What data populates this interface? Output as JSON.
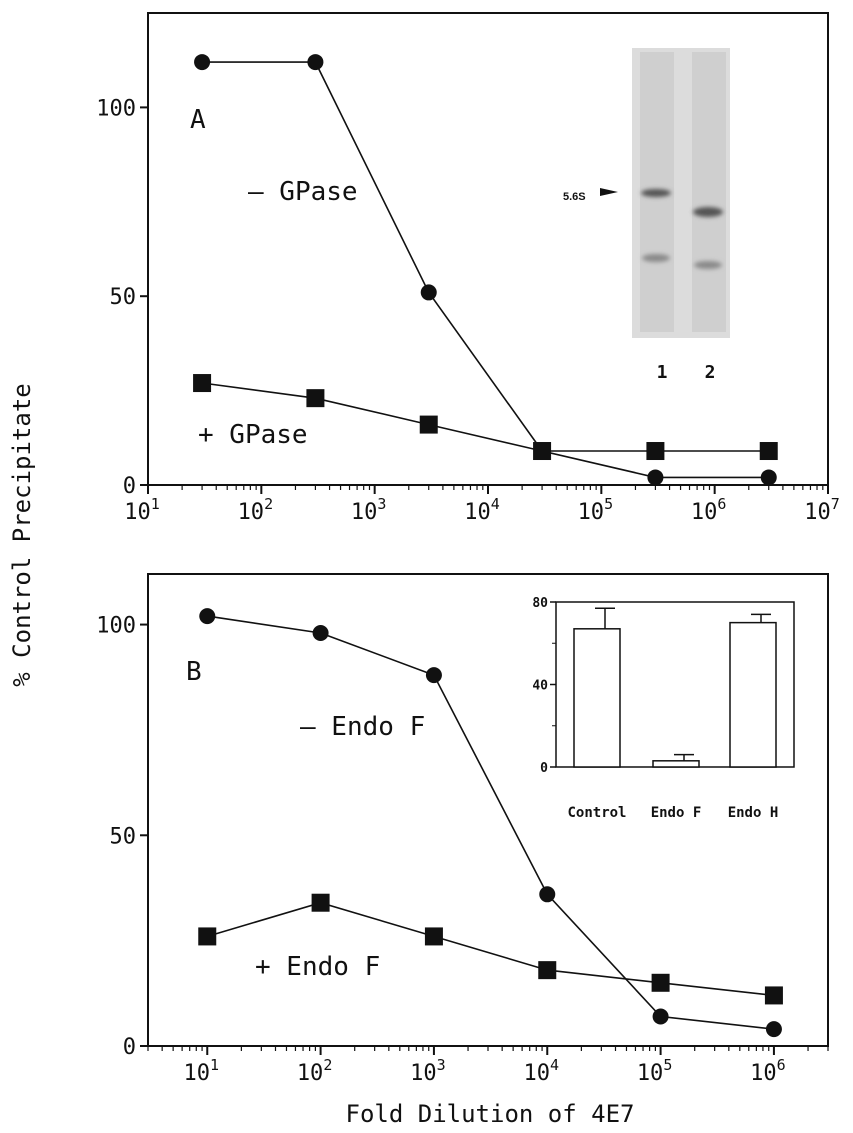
{
  "ylabel": "% Control Precipitate",
  "xlabel": "Fold Dilution of 4E7",
  "colors": {
    "ink": "#111111",
    "gel_bg": "#d9d9d9",
    "band": "#555555"
  },
  "chart_data": [
    {
      "panel": "A",
      "type": "line",
      "x_scale": "log",
      "xlim": [
        10,
        10000000
      ],
      "ylim": [
        0,
        125
      ],
      "xticks": [
        {
          "value": 10,
          "base": "10",
          "exp": "1"
        },
        {
          "value": 100,
          "base": "10",
          "exp": "2"
        },
        {
          "value": 1000,
          "base": "10",
          "exp": "3"
        },
        {
          "value": 10000,
          "base": "10",
          "exp": "4"
        },
        {
          "value": 100000,
          "base": "10",
          "exp": "5"
        },
        {
          "value": 1000000,
          "base": "10",
          "exp": "6"
        },
        {
          "value": 10000000,
          "base": "10",
          "exp": "7"
        }
      ],
      "yticks": [
        0,
        50,
        100
      ],
      "series": [
        {
          "name": "– GPase",
          "marker": "circle",
          "x": [
            30,
            300,
            3000,
            30000,
            300000,
            3000000
          ],
          "y": [
            112,
            112,
            51,
            9,
            2,
            2
          ]
        },
        {
          "name": "+ GPase",
          "marker": "square",
          "x": [
            30,
            300,
            3000,
            30000,
            300000,
            3000000
          ],
          "y": [
            27,
            23,
            16,
            9,
            9,
            9
          ]
        }
      ],
      "inset_gel": {
        "band_label": "5.6S",
        "lanes": [
          "1",
          "2"
        ]
      }
    },
    {
      "panel": "B",
      "type": "line",
      "x_scale": "log",
      "xlim": [
        3,
        3000000
      ],
      "ylim": [
        0,
        112
      ],
      "xticks": [
        {
          "value": 10,
          "base": "10",
          "exp": "1"
        },
        {
          "value": 100,
          "base": "10",
          "exp": "2"
        },
        {
          "value": 1000,
          "base": "10",
          "exp": "3"
        },
        {
          "value": 10000,
          "base": "10",
          "exp": "4"
        },
        {
          "value": 100000,
          "base": "10",
          "exp": "5"
        },
        {
          "value": 1000000,
          "base": "10",
          "exp": "6"
        }
      ],
      "yticks": [
        0,
        50,
        100
      ],
      "series": [
        {
          "name": "– Endo F",
          "marker": "circle",
          "x": [
            10,
            100,
            1000,
            10000,
            100000,
            1000000
          ],
          "y": [
            102,
            98,
            88,
            36,
            7,
            4
          ]
        },
        {
          "name": "+ Endo F",
          "marker": "square",
          "x": [
            10,
            100,
            1000,
            10000,
            100000,
            1000000
          ],
          "y": [
            26,
            34,
            26,
            18,
            15,
            12
          ]
        }
      ],
      "inset_bar": {
        "type": "bar",
        "categories": [
          "Control",
          "Endo F",
          "Endo H"
        ],
        "values": [
          67,
          3,
          70
        ],
        "errors": [
          10,
          3,
          4
        ],
        "ylim": [
          0,
          80
        ],
        "yticks": [
          0,
          40,
          80
        ]
      }
    }
  ]
}
